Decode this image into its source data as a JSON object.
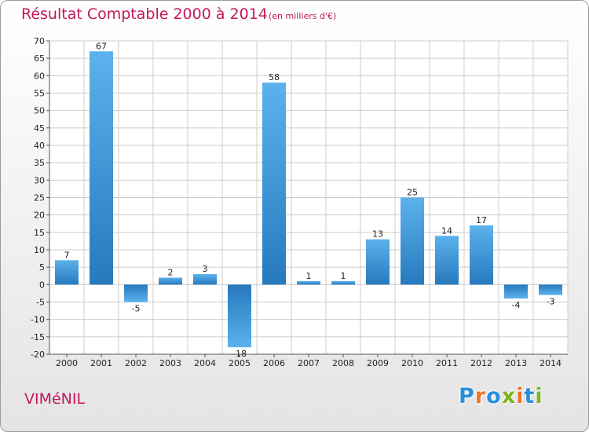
{
  "title": "Résultat Comptable 2000 à 2014",
  "subtitle": "(en milliers d'€)",
  "commune": "VIMéNIL",
  "logo": {
    "letters": [
      "P",
      "r",
      "o",
      "x",
      "i",
      "t",
      "i"
    ],
    "colors": [
      "#2a8fd8",
      "#e8762b",
      "#2a8fd8",
      "#7ab51d",
      "#e8762b",
      "#2a8fd8",
      "#7ab51d"
    ]
  },
  "colors": {
    "title": "#c2185b",
    "bar_light": "#5cb2ec",
    "bar_dark": "#2779bd",
    "grid": "#cccccc"
  },
  "chart_data": {
    "type": "bar",
    "title": "Résultat Comptable 2000 à 2014",
    "subtitle": "(en milliers d'€)",
    "xlabel": "",
    "ylabel": "",
    "categories": [
      "2000",
      "2001",
      "2002",
      "2003",
      "2004",
      "2005",
      "2006",
      "2007",
      "2008",
      "2009",
      "2010",
      "2011",
      "2012",
      "2013",
      "2014"
    ],
    "values": [
      7,
      67,
      -5,
      2,
      3,
      -18,
      58,
      1,
      1,
      13,
      25,
      14,
      17,
      -4,
      -3
    ],
    "data_labels": [
      "7",
      "67",
      "-5",
      "2",
      "3",
      "-18",
      "58",
      "1",
      "1",
      "13",
      "25",
      "14",
      "17",
      "-4",
      "-3"
    ],
    "ylim": [
      -20,
      70
    ],
    "yticks": [
      70,
      65,
      60,
      55,
      50,
      45,
      40,
      35,
      30,
      25,
      20,
      15,
      10,
      5,
      0,
      -5,
      -10,
      -15,
      -20
    ],
    "grid": true,
    "legend": "none"
  }
}
